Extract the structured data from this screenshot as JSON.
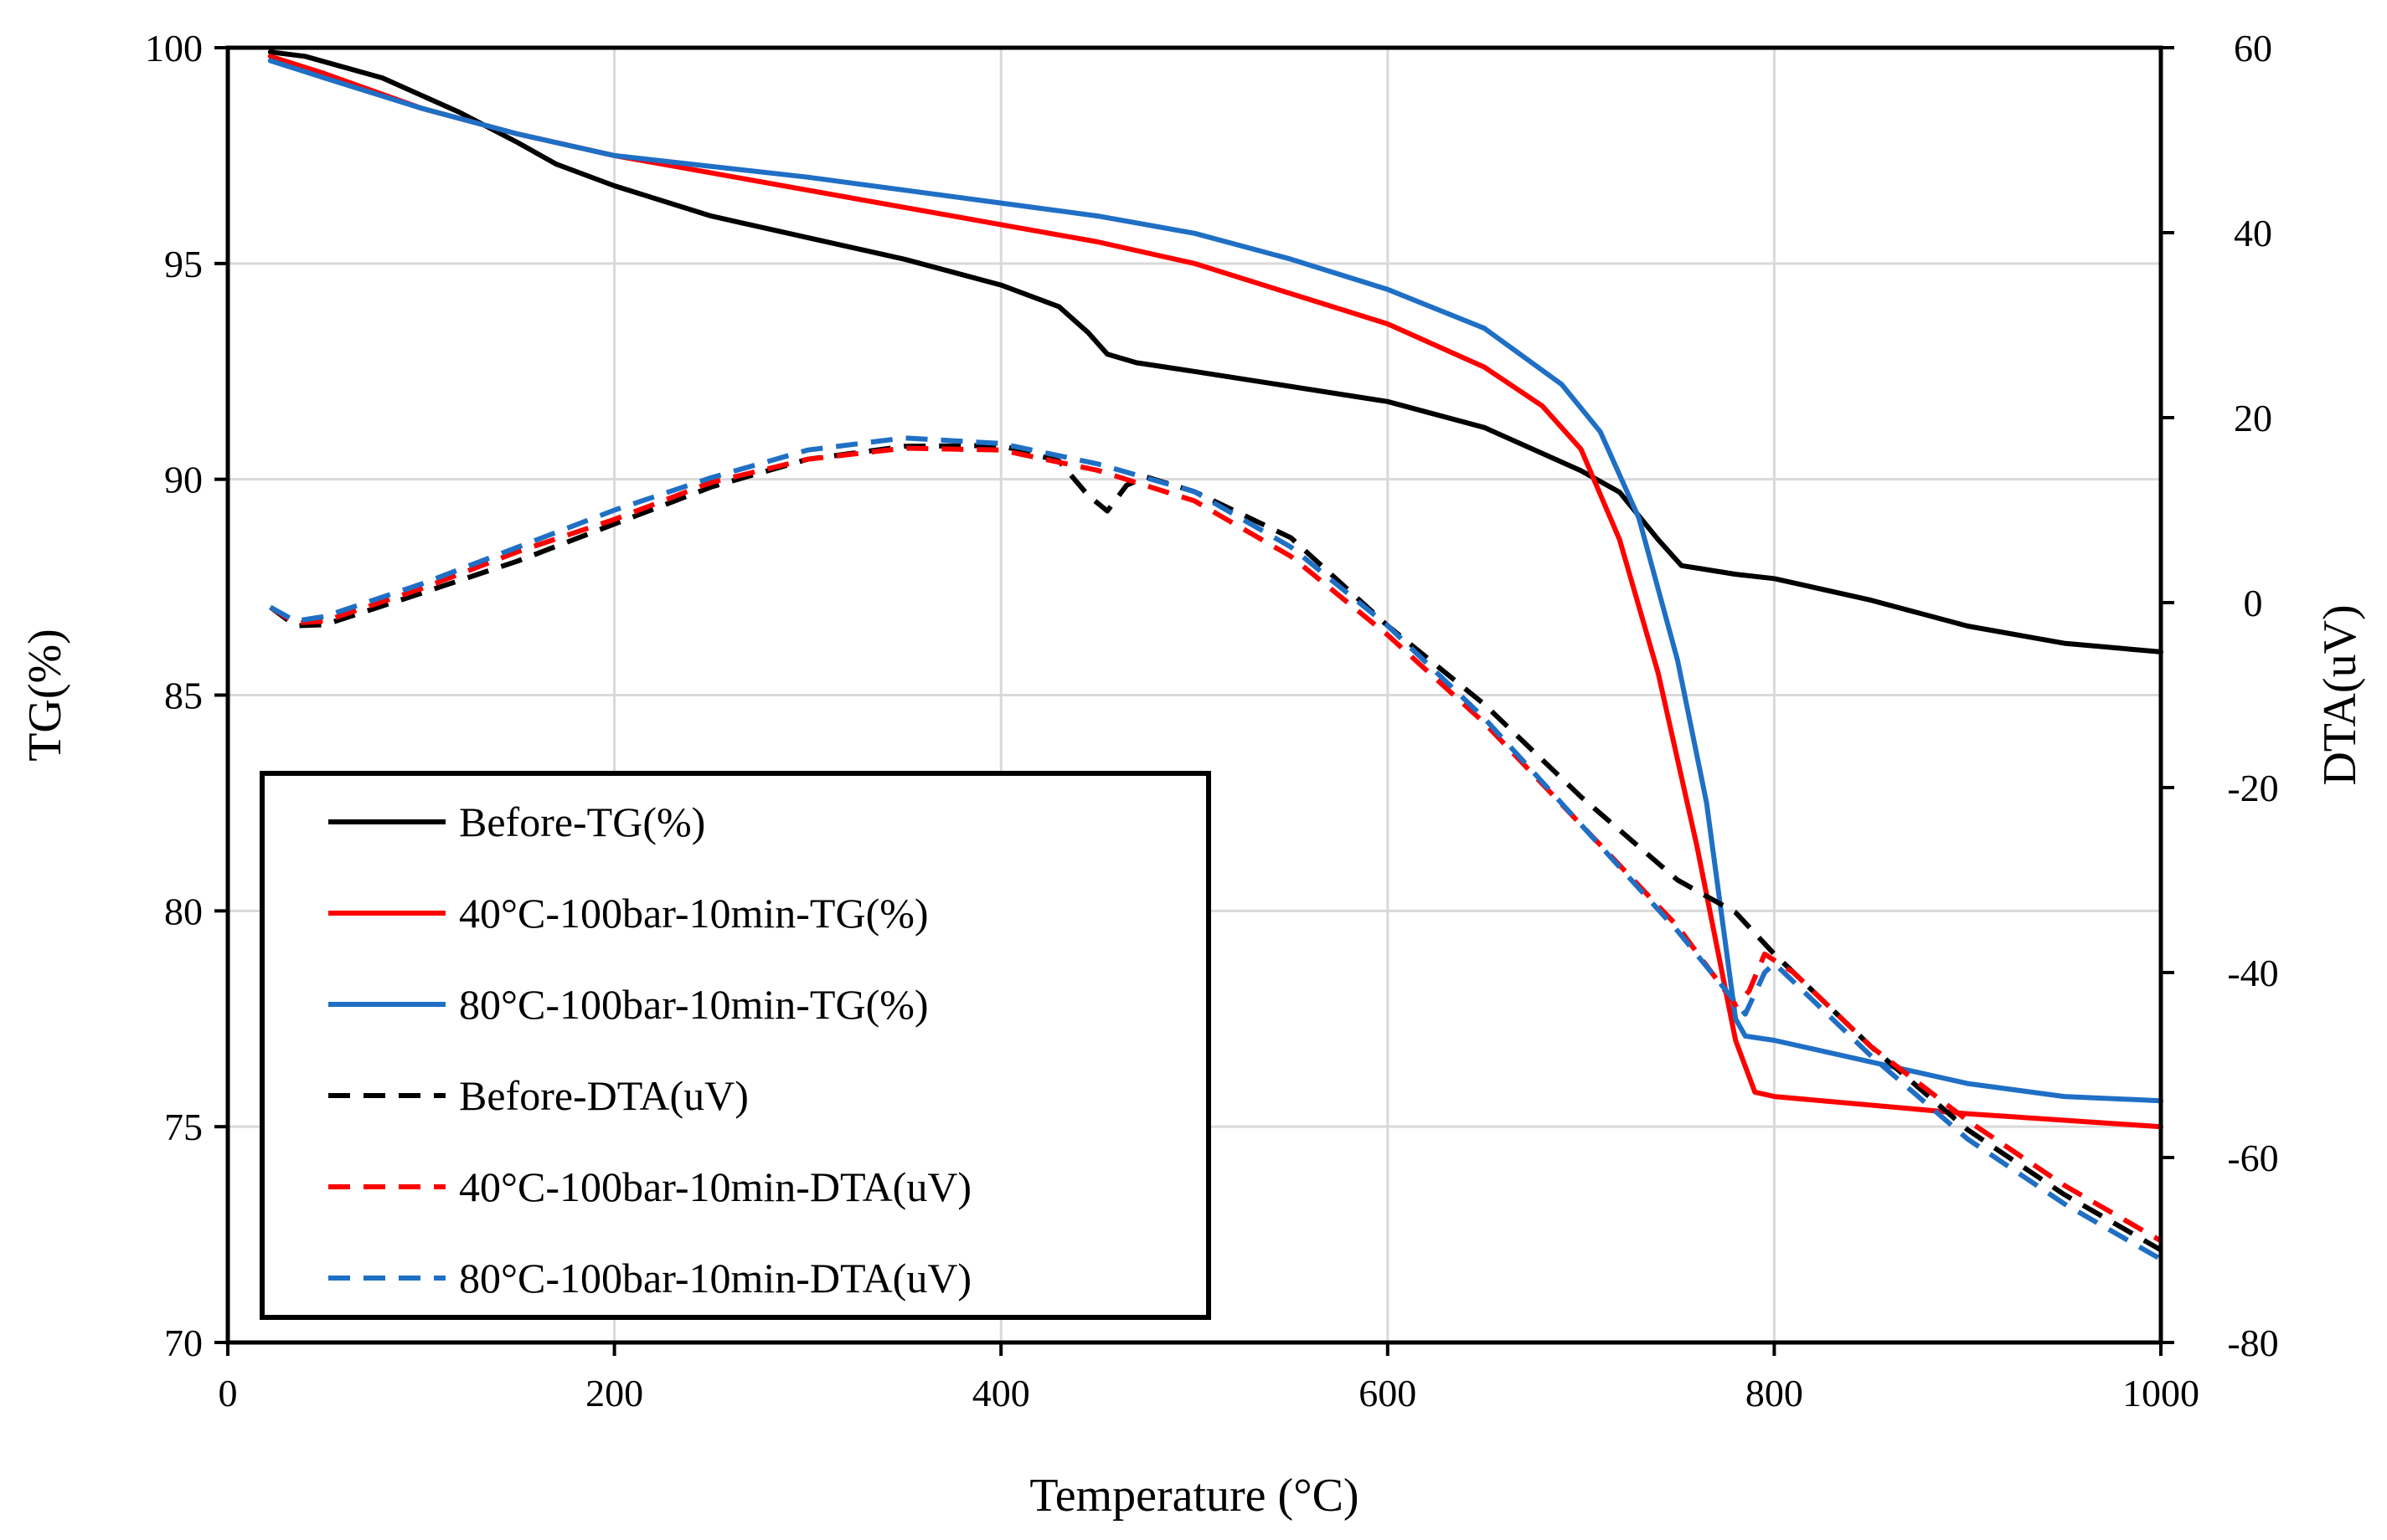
{
  "chart_data": {
    "type": "line",
    "xlabel": "Temperature (°C)",
    "ylabel": "TG(%)",
    "y2label": "DTA(uV)",
    "xlim": [
      0,
      1000
    ],
    "ylim": [
      70,
      100
    ],
    "y2lim": [
      -80,
      60
    ],
    "x_ticks": [
      "0",
      "200",
      "400",
      "600",
      "800",
      "1000"
    ],
    "y_ticks": [
      "70",
      "75",
      "80",
      "85",
      "90",
      "95",
      "100"
    ],
    "y2_ticks": [
      "-80",
      "-60",
      "-40",
      "-20",
      "0",
      "20",
      "40",
      "60"
    ],
    "grid": true,
    "legend_position": "bottom-left",
    "series": [
      {
        "name": "Before-TG(%)",
        "axis": "left",
        "color": "#000000",
        "dash": "solid",
        "points": [
          [
            22,
            99.9
          ],
          [
            40,
            99.8
          ],
          [
            80,
            99.3
          ],
          [
            120,
            98.5
          ],
          [
            150,
            97.8
          ],
          [
            170,
            97.3
          ],
          [
            200,
            96.8
          ],
          [
            250,
            96.1
          ],
          [
            300,
            95.6
          ],
          [
            350,
            95.1
          ],
          [
            400,
            94.5
          ],
          [
            430,
            94.0
          ],
          [
            445,
            93.4
          ],
          [
            455,
            92.9
          ],
          [
            470,
            92.7
          ],
          [
            500,
            92.5
          ],
          [
            600,
            91.8
          ],
          [
            650,
            91.2
          ],
          [
            700,
            90.2
          ],
          [
            720,
            89.7
          ],
          [
            740,
            88.6
          ],
          [
            752,
            88.0
          ],
          [
            780,
            87.8
          ],
          [
            800,
            87.7
          ],
          [
            850,
            87.2
          ],
          [
            900,
            86.6
          ],
          [
            950,
            86.2
          ],
          [
            1000,
            86.0
          ]
        ]
      },
      {
        "name": "40°C-100bar-10min-TG(%)",
        "axis": "left",
        "color": "#ff0000",
        "dash": "solid",
        "points": [
          [
            22,
            99.8
          ],
          [
            50,
            99.4
          ],
          [
            100,
            98.6
          ],
          [
            150,
            98.0
          ],
          [
            200,
            97.5
          ],
          [
            300,
            96.7
          ],
          [
            400,
            95.9
          ],
          [
            450,
            95.5
          ],
          [
            500,
            95.0
          ],
          [
            550,
            94.3
          ],
          [
            600,
            93.6
          ],
          [
            650,
            92.6
          ],
          [
            680,
            91.7
          ],
          [
            700,
            90.7
          ],
          [
            720,
            88.6
          ],
          [
            740,
            85.5
          ],
          [
            760,
            81.5
          ],
          [
            780,
            77.0
          ],
          [
            790,
            75.8
          ],
          [
            800,
            75.7
          ],
          [
            900,
            75.3
          ],
          [
            1000,
            75.0
          ]
        ]
      },
      {
        "name": "80°C-100bar-10min-TG(%)",
        "axis": "left",
        "color": "#1f6fc5",
        "dash": "solid",
        "points": [
          [
            22,
            99.7
          ],
          [
            50,
            99.3
          ],
          [
            100,
            98.6
          ],
          [
            150,
            98.0
          ],
          [
            200,
            97.5
          ],
          [
            300,
            97.0
          ],
          [
            400,
            96.4
          ],
          [
            450,
            96.1
          ],
          [
            500,
            95.7
          ],
          [
            550,
            95.1
          ],
          [
            600,
            94.4
          ],
          [
            650,
            93.5
          ],
          [
            690,
            92.2
          ],
          [
            710,
            91.1
          ],
          [
            730,
            89.1
          ],
          [
            750,
            85.8
          ],
          [
            765,
            82.5
          ],
          [
            780,
            77.5
          ],
          [
            785,
            77.1
          ],
          [
            800,
            77.0
          ],
          [
            850,
            76.5
          ],
          [
            900,
            76.0
          ],
          [
            950,
            75.7
          ],
          [
            1000,
            75.6
          ]
        ]
      },
      {
        "name": "Before-DTA(uV)",
        "axis": "right",
        "color": "#000000",
        "dash": "dashed",
        "points": [
          [
            22,
            -0.5
          ],
          [
            35,
            -2.5
          ],
          [
            50,
            -2.4
          ],
          [
            100,
            1.0
          ],
          [
            150,
            4.5
          ],
          [
            200,
            8.5
          ],
          [
            250,
            12.5
          ],
          [
            300,
            15.5
          ],
          [
            350,
            16.9
          ],
          [
            400,
            17.0
          ],
          [
            430,
            15.3
          ],
          [
            445,
            11.6
          ],
          [
            455,
            9.9
          ],
          [
            465,
            12.7
          ],
          [
            475,
            13.6
          ],
          [
            500,
            12.0
          ],
          [
            550,
            7.0
          ],
          [
            600,
            -2.5
          ],
          [
            650,
            -11.0
          ],
          [
            700,
            -21.0
          ],
          [
            750,
            -30.0
          ],
          [
            780,
            -33.5
          ],
          [
            800,
            -38.0
          ],
          [
            850,
            -48.0
          ],
          [
            900,
            -57.0
          ],
          [
            950,
            -64.0
          ],
          [
            1000,
            -70.0
          ]
        ]
      },
      {
        "name": "40°C-100bar-10min-DTA(uV)",
        "axis": "right",
        "color": "#ff0000",
        "dash": "dashed",
        "points": [
          [
            22,
            -0.5
          ],
          [
            35,
            -2.2
          ],
          [
            50,
            -2.0
          ],
          [
            100,
            1.5
          ],
          [
            150,
            5.5
          ],
          [
            200,
            9.0
          ],
          [
            250,
            13.0
          ],
          [
            300,
            15.5
          ],
          [
            350,
            16.7
          ],
          [
            400,
            16.5
          ],
          [
            450,
            14.3
          ],
          [
            500,
            11.0
          ],
          [
            550,
            5.0
          ],
          [
            600,
            -3.5
          ],
          [
            650,
            -13.0
          ],
          [
            700,
            -24.0
          ],
          [
            750,
            -35.0
          ],
          [
            780,
            -43.5
          ],
          [
            787,
            -42.0
          ],
          [
            795,
            -38.0
          ],
          [
            810,
            -40.0
          ],
          [
            850,
            -48.0
          ],
          [
            900,
            -56.0
          ],
          [
            950,
            -63.0
          ],
          [
            1000,
            -69.0
          ]
        ]
      },
      {
        "name": "80°C-100bar-10min-DTA(uV)",
        "axis": "right",
        "color": "#1f6fc5",
        "dash": "dashed",
        "points": [
          [
            22,
            -0.5
          ],
          [
            35,
            -2.0
          ],
          [
            50,
            -1.5
          ],
          [
            100,
            2.0
          ],
          [
            150,
            6.0
          ],
          [
            200,
            10.0
          ],
          [
            250,
            13.5
          ],
          [
            300,
            16.5
          ],
          [
            350,
            17.8
          ],
          [
            400,
            17.2
          ],
          [
            450,
            15.0
          ],
          [
            500,
            12.0
          ],
          [
            550,
            6.0
          ],
          [
            600,
            -2.5
          ],
          [
            650,
            -12.5
          ],
          [
            700,
            -24.0
          ],
          [
            750,
            -35.5
          ],
          [
            785,
            -44.5
          ],
          [
            795,
            -40.0
          ],
          [
            800,
            -39.0
          ],
          [
            850,
            -49.0
          ],
          [
            900,
            -58.0
          ],
          [
            950,
            -65.0
          ],
          [
            1000,
            -71.0
          ]
        ]
      }
    ]
  }
}
